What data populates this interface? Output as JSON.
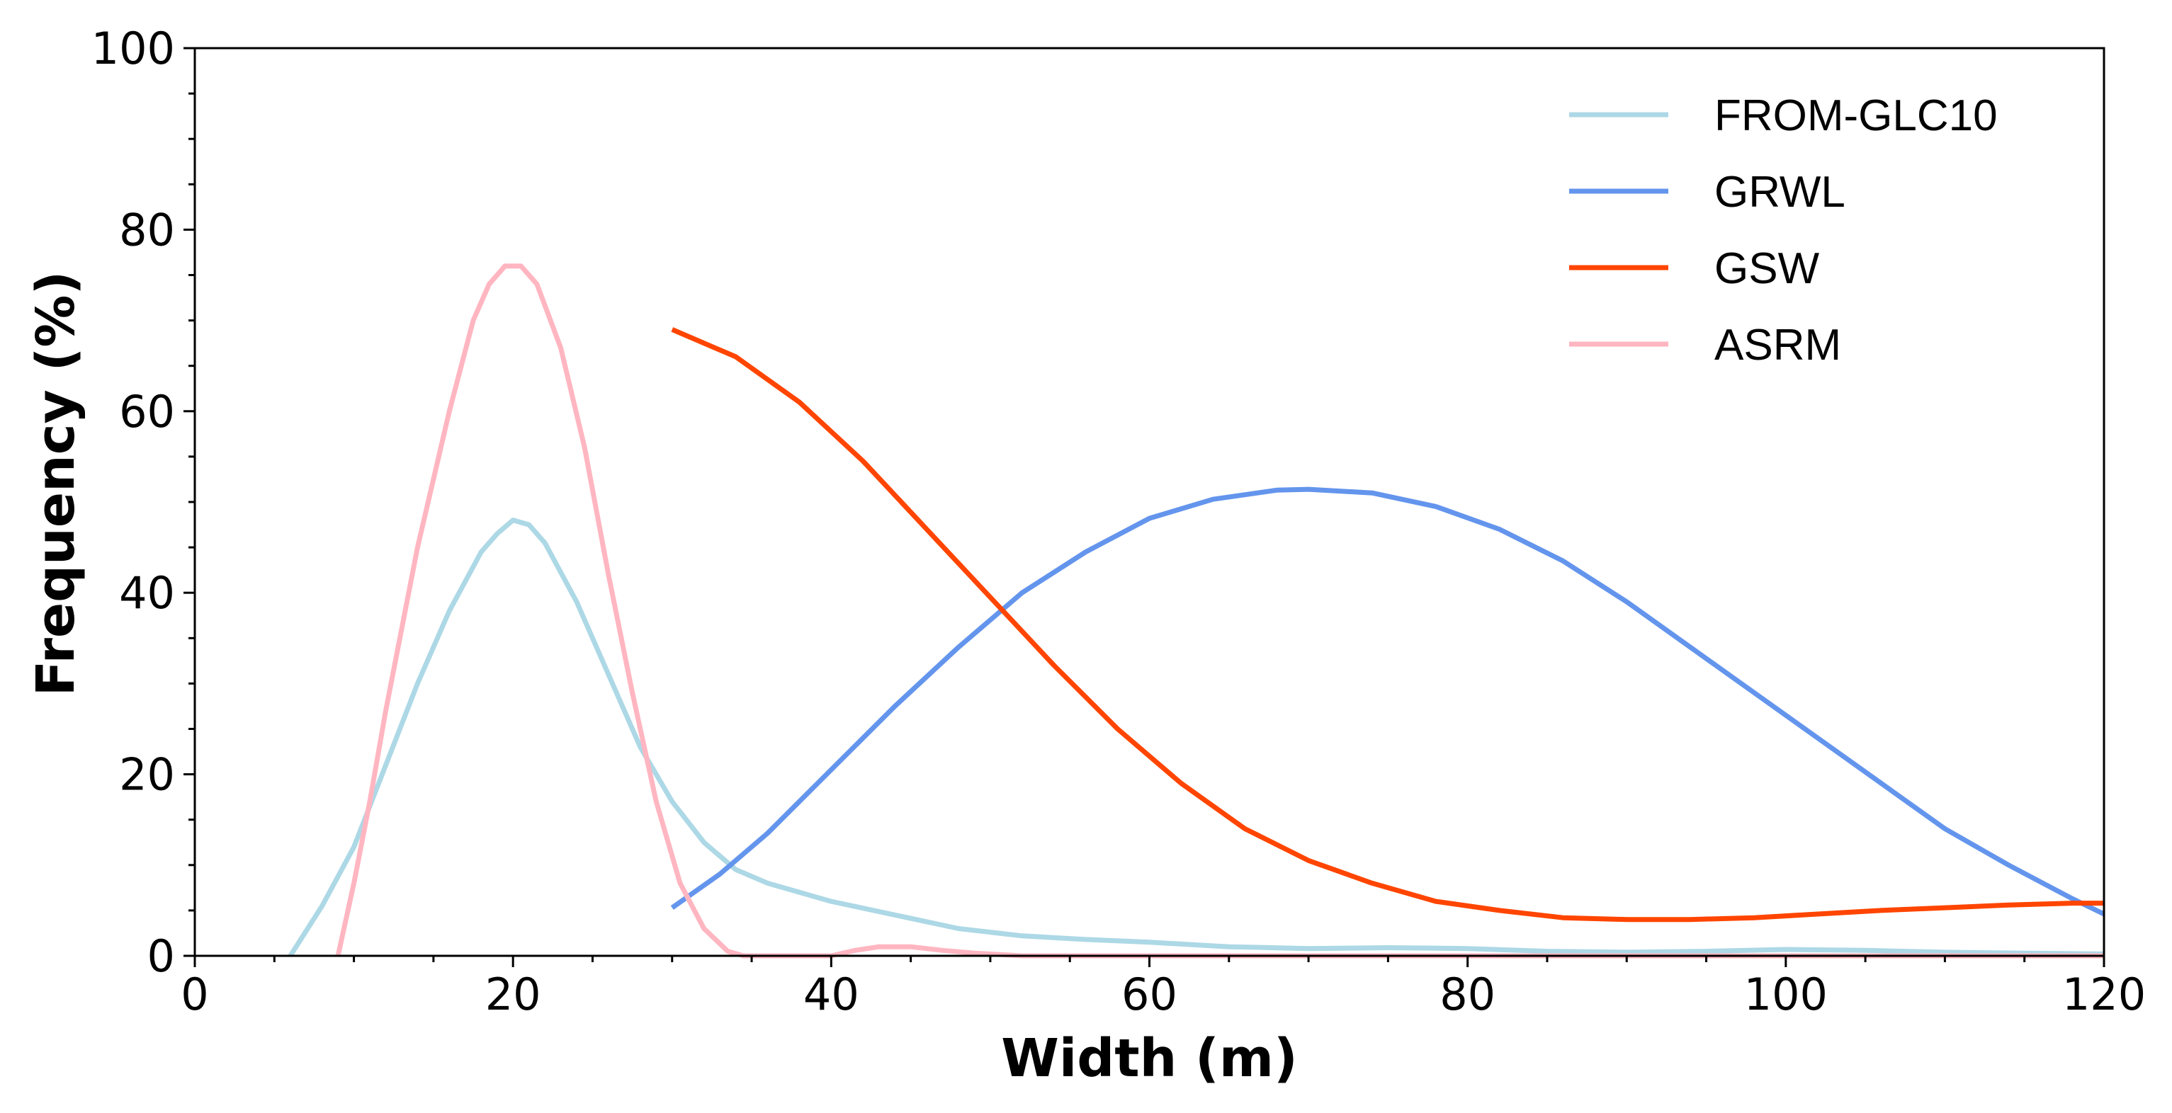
{
  "chart_data": {
    "type": "line",
    "title": "",
    "xlabel": "Width (m)",
    "ylabel": "Frequency  (%)",
    "xlim": [
      0,
      120
    ],
    "ylim": [
      0,
      100
    ],
    "xticks": [
      0,
      20,
      40,
      60,
      80,
      100,
      120
    ],
    "yticks": [
      0,
      20,
      40,
      60,
      80,
      100
    ],
    "x_minor_step": 5,
    "y_minor_step": 5,
    "grid": false,
    "legend_position": "top-right",
    "series": [
      {
        "name": "FROM-GLC10",
        "color": "#ADD8E6",
        "points": [
          [
            6,
            0
          ],
          [
            8,
            5.5
          ],
          [
            10,
            12
          ],
          [
            12,
            21
          ],
          [
            14,
            30
          ],
          [
            16,
            38
          ],
          [
            18,
            44.5
          ],
          [
            19,
            46.5
          ],
          [
            20,
            48
          ],
          [
            21,
            47.5
          ],
          [
            22,
            45.5
          ],
          [
            24,
            39
          ],
          [
            26,
            31
          ],
          [
            28,
            23
          ],
          [
            30,
            17
          ],
          [
            32,
            12.5
          ],
          [
            34,
            9.5
          ],
          [
            36,
            8
          ],
          [
            38,
            7
          ],
          [
            40,
            6
          ],
          [
            44,
            4.5
          ],
          [
            48,
            3
          ],
          [
            52,
            2.2
          ],
          [
            56,
            1.8
          ],
          [
            60,
            1.5
          ],
          [
            65,
            1
          ],
          [
            70,
            0.8
          ],
          [
            75,
            0.9
          ],
          [
            80,
            0.8
          ],
          [
            85,
            0.5
          ],
          [
            90,
            0.4
          ],
          [
            95,
            0.5
          ],
          [
            100,
            0.7
          ],
          [
            105,
            0.6
          ],
          [
            110,
            0.4
          ],
          [
            115,
            0.3
          ],
          [
            120,
            0.2
          ]
        ]
      },
      {
        "name": "GRWL",
        "color": "#6495ED",
        "points": [
          [
            30,
            5.3
          ],
          [
            33,
            9
          ],
          [
            36,
            13.5
          ],
          [
            40,
            20.5
          ],
          [
            44,
            27.5
          ],
          [
            48,
            34
          ],
          [
            52,
            40
          ],
          [
            56,
            44.5
          ],
          [
            60,
            48.2
          ],
          [
            64,
            50.3
          ],
          [
            68,
            51.3
          ],
          [
            70,
            51.4
          ],
          [
            74,
            51
          ],
          [
            78,
            49.5
          ],
          [
            82,
            47
          ],
          [
            86,
            43.5
          ],
          [
            90,
            39
          ],
          [
            94,
            34
          ],
          [
            98,
            29
          ],
          [
            102,
            24
          ],
          [
            106,
            19
          ],
          [
            110,
            14
          ],
          [
            114,
            10
          ],
          [
            118,
            6.3
          ],
          [
            120,
            4.6
          ]
        ]
      },
      {
        "name": "GSW",
        "color": "#FF4500",
        "points": [
          [
            30,
            69
          ],
          [
            34,
            66
          ],
          [
            38,
            61
          ],
          [
            42,
            54.5
          ],
          [
            46,
            47
          ],
          [
            50,
            39.5
          ],
          [
            54,
            32
          ],
          [
            58,
            25
          ],
          [
            62,
            19
          ],
          [
            66,
            14
          ],
          [
            70,
            10.5
          ],
          [
            74,
            8
          ],
          [
            78,
            6
          ],
          [
            82,
            5
          ],
          [
            86,
            4.2
          ],
          [
            90,
            4
          ],
          [
            94,
            4
          ],
          [
            98,
            4.2
          ],
          [
            102,
            4.6
          ],
          [
            106,
            5
          ],
          [
            110,
            5.3
          ],
          [
            114,
            5.6
          ],
          [
            118,
            5.8
          ],
          [
            120,
            5.8
          ]
        ]
      },
      {
        "name": "ASRM",
        "color": "#FFB6C1",
        "points": [
          [
            9,
            0
          ],
          [
            10,
            8
          ],
          [
            11,
            17
          ],
          [
            12,
            27
          ],
          [
            14,
            45
          ],
          [
            16,
            60
          ],
          [
            17.5,
            70
          ],
          [
            18.5,
            74
          ],
          [
            19.5,
            76
          ],
          [
            20.5,
            76
          ],
          [
            21.5,
            74
          ],
          [
            23,
            67
          ],
          [
            24.5,
            56
          ],
          [
            26,
            42
          ],
          [
            27.5,
            29
          ],
          [
            29,
            17
          ],
          [
            30.5,
            8
          ],
          [
            32,
            3
          ],
          [
            33.5,
            0.5
          ],
          [
            34.5,
            0
          ],
          [
            36,
            0
          ],
          [
            38,
            0
          ],
          [
            40,
            0
          ],
          [
            41.5,
            0.6
          ],
          [
            43,
            1
          ],
          [
            45,
            1
          ],
          [
            47,
            0.6
          ],
          [
            49,
            0.3
          ],
          [
            52,
            0
          ],
          [
            120,
            0
          ]
        ]
      }
    ]
  }
}
